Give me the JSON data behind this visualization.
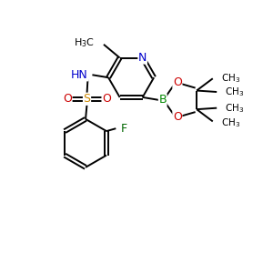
{
  "bg_color": "#ffffff",
  "atom_colors": {
    "C": "#000000",
    "N": "#0000cc",
    "O": "#cc0000",
    "S": "#cc8800",
    "B": "#008800",
    "F": "#006600",
    "H": "#000000"
  },
  "bond_color": "#000000",
  "bond_width": 1.4,
  "figsize": [
    3.0,
    3.0
  ],
  "dpi": 100
}
